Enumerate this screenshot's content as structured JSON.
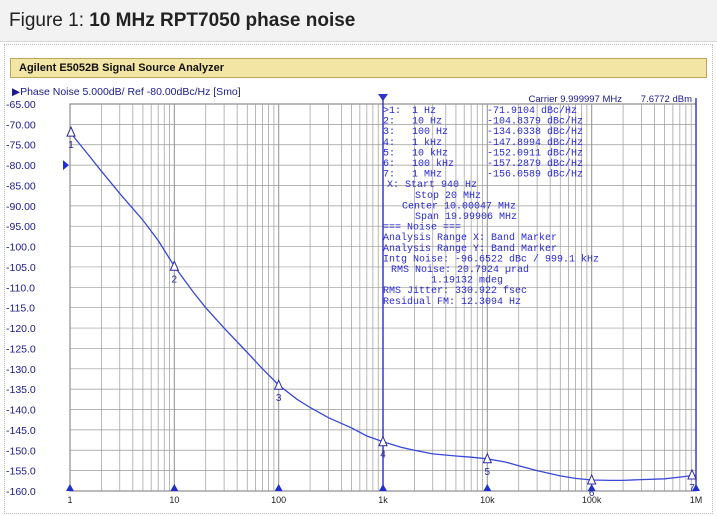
{
  "figure": {
    "prefix": "Figure 1: ",
    "title": "10 MHz RPT7050 phase noise"
  },
  "instrument": {
    "name": "Agilent E5052B Signal Source Analyzer"
  },
  "trace_header": "Phase Noise 5.000dB/ Ref -80.00dBc/Hz [Smo]",
  "carrier": {
    "label": "Carrier 9.999997 MHz",
    "power": "7.6772 dBm"
  },
  "markers": [
    {
      "id": "1",
      "freq": "1 Hz",
      "value": "-71.9104 dBc/Hz",
      "prefix": ">"
    },
    {
      "id": "2",
      "freq": "10 Hz",
      "value": "-104.8379 dBc/Hz",
      "prefix": ""
    },
    {
      "id": "3",
      "freq": "100 Hz",
      "value": "-134.0338 dBc/Hz",
      "prefix": ""
    },
    {
      "id": "4",
      "freq": "1 kHz",
      "value": "-147.8994 dBc/Hz",
      "prefix": ""
    },
    {
      "id": "5",
      "freq": "10 kHz",
      "value": "-152.0911 dBc/Hz",
      "prefix": ""
    },
    {
      "id": "6",
      "freq": "100 kHz",
      "value": "-157.2879 dBc/Hz",
      "prefix": ""
    },
    {
      "id": "7",
      "freq": "1 MHz",
      "value": "-156.0589 dBc/Hz",
      "prefix": ""
    }
  ],
  "sweep": [
    "X: Start 940 Hz",
    "Stop 20 MHz",
    "Center 10.00047 MHz",
    "Span 19.99906 MHz"
  ],
  "noise_block": [
    "=== Noise ===",
    "Analysis Range X: Band Marker",
    "Analysis Range Y: Band Marker",
    "Intg Noise: -96.6522 dBc / 999.1 kHz",
    "RMS Noise: 20.7924 µrad",
    "1.19132 mdeg",
    "RMS Jitter: 330.922 fsec",
    "Residual FM: 12.3094 Hz"
  ],
  "chart_data": {
    "type": "line",
    "title": "Phase Noise 5.000dB/ Ref -80.00dBc/Hz [Smo]",
    "xlabel": "",
    "ylabel": "",
    "x_scale": "log",
    "xlim": [
      1,
      1000000
    ],
    "ylim": [
      -160,
      -65
    ],
    "y_ticks": [
      "-65.00",
      "-70.00",
      "-75.00",
      "-80.00",
      "-85.00",
      "-90.00",
      "-95.00",
      "-100.0",
      "-105.0",
      "-110.0",
      "-115.0",
      "-120.0",
      "-125.0",
      "-130.0",
      "-135.0",
      "-140.0",
      "-145.0",
      "-150.0",
      "-155.0",
      "-160.0"
    ],
    "x_ticks": [
      {
        "value": 1,
        "label": "1"
      },
      {
        "value": 10,
        "label": "10"
      },
      {
        "value": 100,
        "label": "100"
      },
      {
        "value": 1000,
        "label": "1k"
      },
      {
        "value": 10000,
        "label": "10k"
      },
      {
        "value": 100000,
        "label": "100k"
      },
      {
        "value": 1000000,
        "label": "1M"
      }
    ],
    "grid": true,
    "series": [
      {
        "x": [
          1,
          1.5,
          2,
          3,
          5,
          7,
          10,
          15,
          20,
          30,
          50,
          70,
          100,
          150,
          200,
          300,
          500,
          700,
          1000,
          1500,
          2000,
          3000,
          5000,
          7000,
          10000,
          15000,
          20000,
          30000,
          50000,
          70000,
          100000,
          150000,
          200000,
          300000,
          500000,
          700000,
          1000000
        ],
        "y": [
          -71.9,
          -77.5,
          -81.5,
          -87.0,
          -93.5,
          -98.5,
          -104.8,
          -111.0,
          -115.0,
          -120.0,
          -126.0,
          -130.0,
          -134.0,
          -137.5,
          -139.5,
          -142.0,
          -144.5,
          -146.5,
          -147.9,
          -149.3,
          -150.0,
          -150.9,
          -151.4,
          -151.7,
          -152.1,
          -152.9,
          -153.8,
          -155.0,
          -156.3,
          -156.9,
          -157.3,
          -157.4,
          -157.4,
          -157.2,
          -157.0,
          -156.6,
          -156.1
        ]
      }
    ],
    "marker_points": [
      {
        "label": "1",
        "x": 1,
        "y": -71.9104
      },
      {
        "label": "2",
        "x": 10,
        "y": -104.8379
      },
      {
        "label": "3",
        "x": 100,
        "y": -134.0338
      },
      {
        "label": "4",
        "x": 1000,
        "y": -147.8994
      },
      {
        "label": "5",
        "x": 10000,
        "y": -152.0911
      },
      {
        "label": "6",
        "x": 100000,
        "y": -157.2879
      },
      {
        "label": "7",
        "x": 1000000,
        "y": -156.0589
      }
    ],
    "reference_level": -80,
    "colors": {
      "trace": "#3848d8",
      "grid": "#9a9a9a",
      "text": "#2a2ad0",
      "titlebar": "#f3e6a5"
    }
  }
}
